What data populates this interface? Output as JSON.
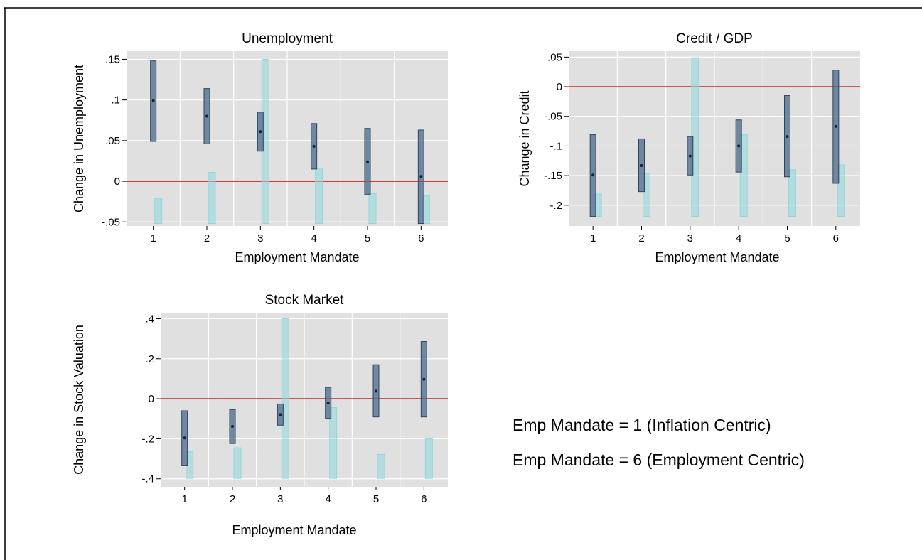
{
  "chart_data": [
    {
      "type": "range-bar",
      "title": "Unemployment",
      "xlabel": "Employment Mandate",
      "ylabel": "Change in Unemployment",
      "categories": [
        "1",
        "2",
        "3",
        "4",
        "5",
        "6"
      ],
      "ylim": [
        -0.055,
        0.16
      ],
      "yticks": [
        -0.05,
        0,
        0.05,
        0.1,
        0.15
      ],
      "ytick_labels": [
        "-.05",
        "0",
        ".05",
        ".1",
        ".15"
      ],
      "reference_line": 0,
      "grid": true,
      "series": [
        {
          "color": "#4a6a8a",
          "point": [
            0.099,
            0.08,
            0.061,
            0.043,
            0.024,
            0.006
          ],
          "lower": [
            0.049,
            0.046,
            0.037,
            0.015,
            -0.016,
            -0.052
          ],
          "upper": [
            0.148,
            0.114,
            0.085,
            0.071,
            0.065,
            0.063
          ]
        },
        {
          "color": "#8fd8dc",
          "lower": [
            -0.052,
            -0.052,
            -0.052,
            -0.052,
            -0.052,
            -0.052
          ],
          "upper": [
            -0.021,
            0.011,
            0.15,
            0.016,
            -0.015,
            -0.018
          ]
        }
      ]
    },
    {
      "type": "range-bar",
      "title": "Credit / GDP",
      "xlabel": "Employment Mandate",
      "ylabel": "Change in Credit",
      "categories": [
        "1",
        "2",
        "3",
        "4",
        "5",
        "6"
      ],
      "ylim": [
        -0.235,
        0.06
      ],
      "yticks": [
        -0.2,
        -0.15,
        -0.1,
        -0.05,
        0,
        0.05
      ],
      "ytick_labels": [
        "-.2",
        "-.15",
        "-.1",
        "-.05",
        "0",
        ".05"
      ],
      "reference_line": 0,
      "grid": true,
      "series": [
        {
          "color": "#4a6a8a",
          "point": [
            -0.149,
            -0.133,
            -0.117,
            -0.1,
            -0.084,
            -0.067
          ],
          "lower": [
            -0.219,
            -0.177,
            -0.149,
            -0.144,
            -0.152,
            -0.163
          ],
          "upper": [
            -0.081,
            -0.088,
            -0.084,
            -0.056,
            -0.015,
            0.028
          ]
        },
        {
          "color": "#8fd8dc",
          "lower": [
            -0.219,
            -0.219,
            -0.219,
            -0.219,
            -0.219,
            -0.219
          ],
          "upper": [
            -0.181,
            -0.147,
            0.049,
            -0.081,
            -0.14,
            -0.132
          ]
        }
      ]
    },
    {
      "type": "range-bar",
      "title": "Stock Market",
      "xlabel": "Employment Mandate",
      "ylabel": "Change in Stock Valuation",
      "categories": [
        "1",
        "2",
        "3",
        "4",
        "5",
        "6"
      ],
      "ylim": [
        -0.44,
        0.43
      ],
      "yticks": [
        -0.4,
        -0.2,
        0,
        0.2,
        0.4
      ],
      "ytick_labels": [
        "-.4",
        "-.2",
        "0",
        ".2",
        ".4"
      ],
      "reference_line": 0,
      "grid": true,
      "series": [
        {
          "color": "#4a6a8a",
          "point": [
            -0.196,
            -0.138,
            -0.079,
            -0.021,
            0.038,
            0.097
          ],
          "lower": [
            -0.335,
            -0.224,
            -0.132,
            -0.098,
            -0.091,
            -0.091
          ],
          "upper": [
            -0.06,
            -0.054,
            -0.026,
            0.057,
            0.17,
            0.286
          ]
        },
        {
          "color": "#8fd8dc",
          "lower": [
            -0.398,
            -0.398,
            -0.398,
            -0.398,
            -0.398,
            -0.398
          ],
          "upper": [
            -0.265,
            -0.245,
            0.4,
            -0.044,
            -0.278,
            -0.2
          ]
        }
      ]
    }
  ],
  "notes": {
    "line1": "Emp Mandate = 1 (Inflation Centric)",
    "line2": "Emp Mandate = 6 (Employment Centric)"
  },
  "colors": {
    "plot_background": "#e0e0e0",
    "gridline": "#ffffff",
    "reference_line": "#d62020",
    "frame": "#000000"
  }
}
